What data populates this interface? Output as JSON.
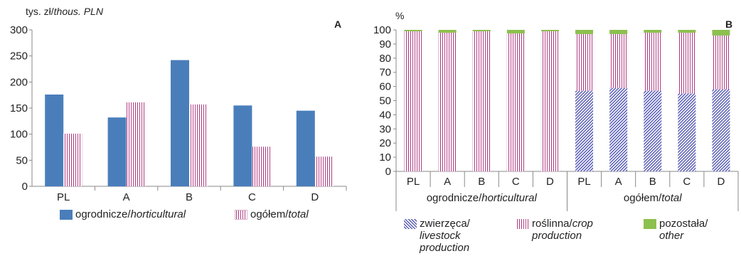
{
  "chart_data": [
    {
      "type": "bar",
      "panel": "A",
      "unit_label": {
        "main": "tys. zł/",
        "italic": "thous. PLN"
      },
      "categories": [
        "PL",
        "A",
        "B",
        "C",
        "D"
      ],
      "ylim": [
        0,
        300
      ],
      "yticks": [
        0,
        50,
        100,
        150,
        200,
        250,
        300
      ],
      "series": [
        {
          "name": "ogrodnicze/",
          "name_italic": "horticultural",
          "color": "#4a7ebb",
          "values": [
            176,
            132,
            242,
            155,
            145
          ]
        },
        {
          "name": "ogółem/",
          "name_italic": "total",
          "color": "#b03a82",
          "values": [
            101,
            161,
            157,
            76,
            57
          ]
        }
      ],
      "legend_position": "bottom"
    },
    {
      "type": "bar",
      "stacked": true,
      "panel": "B",
      "unit_label": "%",
      "categories": [
        "PL",
        "A",
        "B",
        "C",
        "D",
        "PL",
        "A",
        "B",
        "C",
        "D"
      ],
      "groups": [
        {
          "main": "ogrodnicze/",
          "italic": "horticultural"
        },
        {
          "main": "ogółem/",
          "italic": "total"
        }
      ],
      "ylim": [
        0,
        100
      ],
      "yticks": [
        0,
        10,
        20,
        30,
        40,
        50,
        60,
        70,
        80,
        90,
        100
      ],
      "series": [
        {
          "name": "zwierzęca/",
          "name_italic": "livestock production",
          "color": "#5b5fb8",
          "values": [
            0,
            0,
            0,
            0,
            0,
            57,
            59,
            57,
            55,
            58
          ]
        },
        {
          "name": "roślinna/",
          "name_italic": "crop production",
          "color": "#b03a82",
          "values": [
            99,
            98,
            99,
            97.5,
            99,
            40,
            38,
            41,
            43,
            38
          ]
        },
        {
          "name": "pozostała/",
          "name_italic": "other",
          "color": "#8dc04f",
          "values": [
            1,
            2,
            1,
            2.5,
            1,
            3,
            3,
            2,
            2,
            4
          ]
        }
      ],
      "legend_position": "bottom"
    }
  ]
}
